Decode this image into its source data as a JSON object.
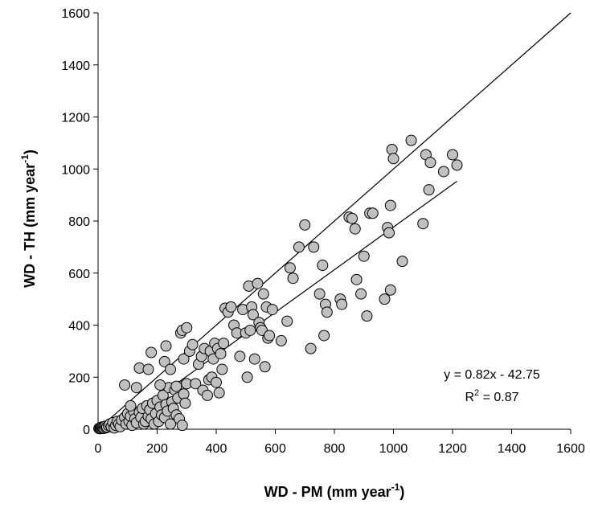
{
  "chart_data": {
    "type": "scatter",
    "title": "",
    "xlabel": "WD - PM (mm year",
    "xlabel_sup": "-1",
    "xlabel_end": ")",
    "ylabel": "WD - TH (mm year",
    "ylabel_sup": "-1",
    "ylabel_end": ")",
    "xlim": [
      0,
      1600
    ],
    "ylim": [
      0,
      1600
    ],
    "xticks": [
      "0",
      "200",
      "400",
      "600",
      "800",
      "1000",
      "1200",
      "1400",
      "1600"
    ],
    "yticks": [
      "0",
      "200",
      "400",
      "600",
      "800",
      "1000",
      "1200",
      "1400",
      "1600"
    ],
    "grid": false,
    "marker_fill": "#c0c0c0",
    "marker_edge": "#000000",
    "line_color": "#000000",
    "annotations": {
      "equation": "y = 0.82x - 42.75",
      "r2_prefix": "R",
      "r2_sup": "2",
      "r2_suffix": " = 0.87"
    },
    "lines": [
      {
        "role": "1:1 line",
        "x": [
          0,
          1600
        ],
        "y": [
          0,
          1600
        ]
      },
      {
        "role": "regression",
        "x": [
          52,
          1215
        ],
        "y": [
          0,
          953
        ]
      }
    ],
    "series": [
      {
        "points": [
          [
            3,
            3
          ],
          [
            6,
            2
          ],
          [
            8,
            5
          ],
          [
            10,
            4
          ],
          [
            12,
            8
          ],
          [
            15,
            6
          ],
          [
            18,
            3
          ],
          [
            20,
            10
          ],
          [
            22,
            4
          ],
          [
            25,
            12
          ],
          [
            28,
            6
          ],
          [
            30,
            9
          ],
          [
            35,
            15
          ],
          [
            40,
            20
          ],
          [
            45,
            10
          ],
          [
            50,
            25
          ],
          [
            55,
            5
          ],
          [
            60,
            15
          ],
          [
            65,
            30
          ],
          [
            70,
            20
          ],
          [
            75,
            10
          ],
          [
            80,
            35
          ],
          [
            90,
            45
          ],
          [
            95,
            20
          ],
          [
            100,
            60
          ],
          [
            105,
            30
          ],
          [
            110,
            50
          ],
          [
            115,
            15
          ],
          [
            120,
            70
          ],
          [
            125,
            40
          ],
          [
            130,
            25
          ],
          [
            140,
            65
          ],
          [
            145,
            45
          ],
          [
            150,
            80
          ],
          [
            155,
            20
          ],
          [
            160,
            30
          ],
          [
            165,
            90
          ],
          [
            170,
            50
          ],
          [
            175,
            75
          ],
          [
            180,
            40
          ],
          [
            185,
            100
          ],
          [
            190,
            20
          ],
          [
            195,
            60
          ],
          [
            200,
            110
          ],
          [
            205,
            30
          ],
          [
            210,
            85
          ],
          [
            215,
            55
          ],
          [
            220,
            130
          ],
          [
            225,
            45
          ],
          [
            230,
            95
          ],
          [
            235,
            70
          ],
          [
            240,
            160
          ],
          [
            245,
            20
          ],
          [
            250,
            105
          ],
          [
            255,
            80
          ],
          [
            260,
            150
          ],
          [
            265,
            55
          ],
          [
            270,
            120
          ],
          [
            275,
            40
          ],
          [
            280,
            165
          ],
          [
            285,
            15
          ],
          [
            290,
            135
          ],
          [
            295,
            100
          ],
          [
            300,
            175
          ],
          [
            90,
            170
          ],
          [
            110,
            90
          ],
          [
            130,
            160
          ],
          [
            140,
            235
          ],
          [
            170,
            230
          ],
          [
            180,
            295
          ],
          [
            210,
            170
          ],
          [
            225,
            260
          ],
          [
            230,
            320
          ],
          [
            245,
            230
          ],
          [
            265,
            165
          ],
          [
            280,
            370
          ],
          [
            285,
            380
          ],
          [
            290,
            270
          ],
          [
            300,
            390
          ],
          [
            310,
            300
          ],
          [
            320,
            325
          ],
          [
            330,
            175
          ],
          [
            340,
            250
          ],
          [
            350,
            280
          ],
          [
            355,
            150
          ],
          [
            360,
            310
          ],
          [
            370,
            130
          ],
          [
            375,
            190
          ],
          [
            380,
            300
          ],
          [
            385,
            200
          ],
          [
            390,
            270
          ],
          [
            395,
            330
          ],
          [
            400,
            180
          ],
          [
            405,
            310
          ],
          [
            410,
            140
          ],
          [
            415,
            290
          ],
          [
            420,
            230
          ],
          [
            425,
            330
          ],
          [
            430,
            465
          ],
          [
            440,
            450
          ],
          [
            450,
            470
          ],
          [
            460,
            400
          ],
          [
            470,
            370
          ],
          [
            480,
            280
          ],
          [
            490,
            460
          ],
          [
            500,
            370
          ],
          [
            505,
            200
          ],
          [
            510,
            550
          ],
          [
            515,
            380
          ],
          [
            520,
            470
          ],
          [
            525,
            440
          ],
          [
            530,
            270
          ],
          [
            540,
            560
          ],
          [
            545,
            410
          ],
          [
            550,
            390
          ],
          [
            555,
            380
          ],
          [
            560,
            520
          ],
          [
            565,
            240
          ],
          [
            570,
            470
          ],
          [
            575,
            350
          ],
          [
            580,
            360
          ],
          [
            590,
            460
          ],
          [
            620,
            340
          ],
          [
            640,
            415
          ],
          [
            650,
            620
          ],
          [
            660,
            580
          ],
          [
            680,
            700
          ],
          [
            700,
            785
          ],
          [
            720,
            310
          ],
          [
            730,
            700
          ],
          [
            750,
            520
          ],
          [
            760,
            630
          ],
          [
            765,
            360
          ],
          [
            770,
            480
          ],
          [
            775,
            450
          ],
          [
            820,
            500
          ],
          [
            825,
            480
          ],
          [
            850,
            815
          ],
          [
            860,
            810
          ],
          [
            870,
            770
          ],
          [
            875,
            575
          ],
          [
            890,
            520
          ],
          [
            900,
            665
          ],
          [
            910,
            435
          ],
          [
            920,
            830
          ],
          [
            930,
            830
          ],
          [
            970,
            500
          ],
          [
            980,
            775
          ],
          [
            990,
            535
          ],
          [
            985,
            755
          ],
          [
            990,
            860
          ],
          [
            995,
            1075
          ],
          [
            1000,
            1040
          ],
          [
            1030,
            645
          ],
          [
            1060,
            1110
          ],
          [
            1100,
            790
          ],
          [
            1110,
            1055
          ],
          [
            1120,
            920
          ],
          [
            1125,
            1025
          ],
          [
            1170,
            990
          ],
          [
            1200,
            1055
          ],
          [
            1215,
            1015
          ]
        ]
      }
    ]
  }
}
